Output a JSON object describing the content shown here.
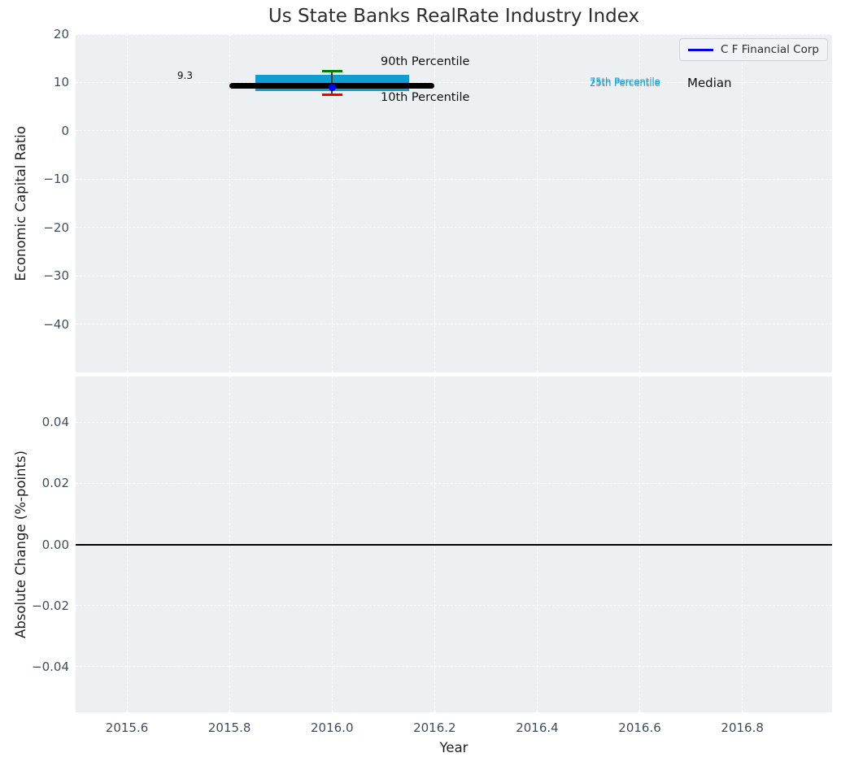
{
  "chart_data": [
    {
      "type": "line",
      "title": "Us State Banks RealRate Industry Index",
      "xlabel": "Year",
      "ylabel": "Economic Capital Ratio",
      "xlim": [
        2015.5,
        2016.975
      ],
      "ylim": [
        -50,
        20
      ],
      "grid": true,
      "x_ticks": [
        2015.6,
        2015.8,
        2016.0,
        2016.2,
        2016.4,
        2016.6,
        2016.8
      ],
      "x_tick_labels": [
        "2015.6",
        "2015.8",
        "2016.0",
        "2016.2",
        "2016.4",
        "2016.6",
        "2016.8"
      ],
      "y_ticks": [
        20,
        10,
        0,
        -10,
        -20,
        -30,
        -40
      ],
      "y_tick_labels": [
        "20",
        "10",
        "0",
        "−10",
        "−20",
        "−30",
        "−40"
      ],
      "legend": {
        "position": "upper right",
        "entries": [
          {
            "label": "C F Financial Corp",
            "color": "#0000e0"
          }
        ]
      },
      "industry_stats": {
        "x_center": 2016.0,
        "median": {
          "value": 9.3,
          "x_start": 2015.8,
          "x_end": 2016.2,
          "color": "#000000"
        },
        "iqr": {
          "p25": 8.2,
          "p75": 11.6,
          "x_start": 2015.85,
          "x_end": 2016.15,
          "color": "#0f9dd4"
        },
        "p90": {
          "value": 12.4,
          "color": "#008000"
        },
        "p10": {
          "value": 7.5,
          "color": "#f10000"
        }
      },
      "series": [
        {
          "name": "C F Financial Corp",
          "x": [
            2016.0
          ],
          "y": [
            9.0
          ],
          "color": "#0000ff",
          "marker": "circle"
        }
      ],
      "annotations": {
        "median_value": "9.3",
        "p90_label": "90th Percentile",
        "p10_label": "10th Percentile",
        "p75_label": "75th Percentile",
        "p25_label": "25th Percentile",
        "median_label": "Median"
      }
    },
    {
      "type": "line",
      "xlabel": "Year",
      "ylabel": "Absolute Change (%-points)",
      "xlim": [
        2015.5,
        2016.975
      ],
      "ylim": [
        -0.055,
        0.055
      ],
      "grid": true,
      "y_ticks": [
        0.04,
        0.02,
        0.0,
        -0.02,
        -0.04
      ],
      "y_tick_labels": [
        "0.04",
        "0.02",
        "0.00",
        "−0.02",
        "−0.04"
      ],
      "zero_line": 0.0,
      "series": []
    }
  ],
  "colors": {
    "axes_background": "#ecf0f2",
    "gridline": "#ffffff",
    "tick_label": "#3d4e61",
    "percentile_text": "#1a9fd1"
  }
}
